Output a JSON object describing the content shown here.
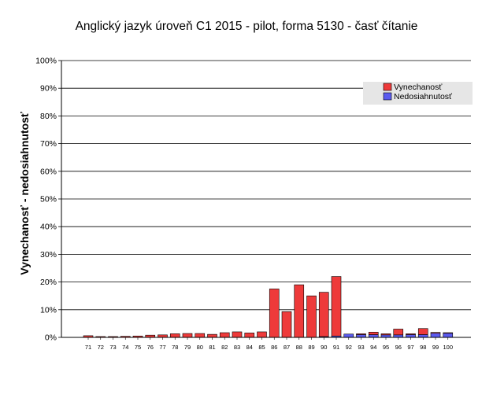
{
  "chart_data": {
    "type": "bar",
    "stacked": true,
    "title": "Anglický jazyk úroveň C1 2015 - pilot, forma 5130 - časť čítanie",
    "xlabel": "",
    "ylabel": "Vynechanosť - nedosiahnutosť",
    "ylim": [
      0,
      100
    ],
    "yticks": [
      "0%",
      "10%",
      "20%",
      "30%",
      "40%",
      "50%",
      "60%",
      "70%",
      "80%",
      "90%",
      "100%"
    ],
    "grid": true,
    "legend_position": "top-right",
    "categories": [
      "71",
      "72",
      "73",
      "74",
      "75",
      "76",
      "77",
      "78",
      "79",
      "80",
      "81",
      "82",
      "83",
      "84",
      "85",
      "86",
      "87",
      "88",
      "89",
      "90",
      "91",
      "92",
      "93",
      "94",
      "95",
      "96",
      "97",
      "98",
      "99",
      "100"
    ],
    "series": [
      {
        "name": "Nedosiahnutosť",
        "color": "#5b5bef",
        "values": [
          0,
          0,
          0,
          0,
          0,
          0,
          0,
          0,
          0,
          0,
          0,
          0,
          0,
          0,
          0,
          0,
          0,
          0,
          0,
          0.3,
          0.5,
          1.2,
          1.0,
          1.0,
          0.9,
          0.9,
          1.0,
          1.0,
          1.5,
          1.5
        ]
      },
      {
        "name": "Vynechanosť",
        "color": "#ee3a3a",
        "values": [
          0.6,
          0.3,
          0.3,
          0.4,
          0.5,
          0.8,
          0.9,
          1.3,
          1.4,
          1.4,
          1.1,
          1.7,
          2.0,
          1.6,
          2.0,
          17.5,
          9.3,
          19.0,
          15.0,
          16.0,
          21.5,
          0,
          0.3,
          0.9,
          0.4,
          2.1,
          0.3,
          2.2,
          0.3,
          0.2
        ]
      }
    ]
  }
}
